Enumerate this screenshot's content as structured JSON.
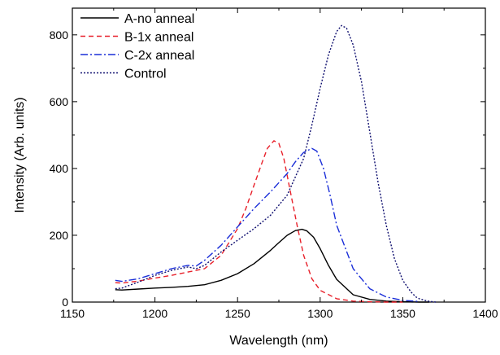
{
  "chart_data": {
    "type": "line",
    "xlabel": "Wavelength (nm)",
    "ylabel": "Intensity (Arb. units)",
    "xlim": [
      1150,
      1400
    ],
    "ylim": [
      0,
      880
    ],
    "xticks": [
      1150,
      1200,
      1250,
      1300,
      1350,
      1400
    ],
    "yticks": [
      0,
      200,
      400,
      600,
      800
    ],
    "grid": false,
    "legend": "top-left",
    "series": [
      {
        "name": "A-no anneal",
        "color": "#000000",
        "dash": "solid",
        "x": [
          1176,
          1180,
          1190,
          1200,
          1210,
          1220,
          1230,
          1240,
          1250,
          1260,
          1270,
          1275,
          1280,
          1285,
          1289,
          1292,
          1296,
          1300,
          1305,
          1310,
          1320,
          1330,
          1340,
          1350,
          1360,
          1366
        ],
        "y": [
          37,
          36,
          39,
          42,
          44,
          47,
          52,
          65,
          85,
          115,
          155,
          178,
          200,
          214,
          218,
          213,
          194,
          160,
          110,
          68,
          22,
          8,
          3,
          1,
          0,
          0
        ]
      },
      {
        "name": "B-1x anneal",
        "color": "#e8202a",
        "dash": "dashed",
        "x": [
          1176,
          1180,
          1190,
          1200,
          1210,
          1220,
          1230,
          1240,
          1250,
          1255,
          1260,
          1265,
          1268,
          1272,
          1275,
          1278,
          1282,
          1286,
          1290,
          1295,
          1300,
          1310,
          1320,
          1330,
          1340,
          1350
        ],
        "y": [
          58,
          57,
          63,
          72,
          80,
          90,
          100,
          140,
          220,
          280,
          350,
          420,
          460,
          483,
          475,
          430,
          330,
          230,
          140,
          70,
          35,
          10,
          3,
          1,
          0,
          0
        ]
      },
      {
        "name": "C-2x anneal",
        "color": "#1a2ed8",
        "dash": "dashdot",
        "x": [
          1176,
          1180,
          1190,
          1200,
          1210,
          1220,
          1225,
          1230,
          1240,
          1250,
          1260,
          1270,
          1280,
          1285,
          1290,
          1295,
          1298,
          1302,
          1306,
          1310,
          1320,
          1330,
          1340,
          1350,
          1360
        ],
        "y": [
          65,
          62,
          70,
          85,
          100,
          110,
          108,
          125,
          170,
          225,
          280,
          330,
          385,
          420,
          448,
          460,
          452,
          400,
          320,
          230,
          100,
          40,
          15,
          5,
          2
        ]
      },
      {
        "name": "Control",
        "color": "#101070",
        "dash": "dotted",
        "x": [
          1176,
          1180,
          1190,
          1200,
          1210,
          1220,
          1225,
          1230,
          1240,
          1250,
          1260,
          1270,
          1280,
          1290,
          1295,
          1300,
          1305,
          1310,
          1313,
          1316,
          1320,
          1325,
          1330,
          1335,
          1340,
          1345,
          1350,
          1355,
          1358,
          1360,
          1365,
          1370
        ],
        "y": [
          40,
          42,
          60,
          80,
          95,
          105,
          100,
          110,
          150,
          185,
          220,
          260,
          320,
          430,
          530,
          640,
          740,
          810,
          828,
          820,
          770,
          660,
          510,
          360,
          230,
          130,
          65,
          30,
          15,
          10,
          3,
          0
        ]
      }
    ]
  }
}
